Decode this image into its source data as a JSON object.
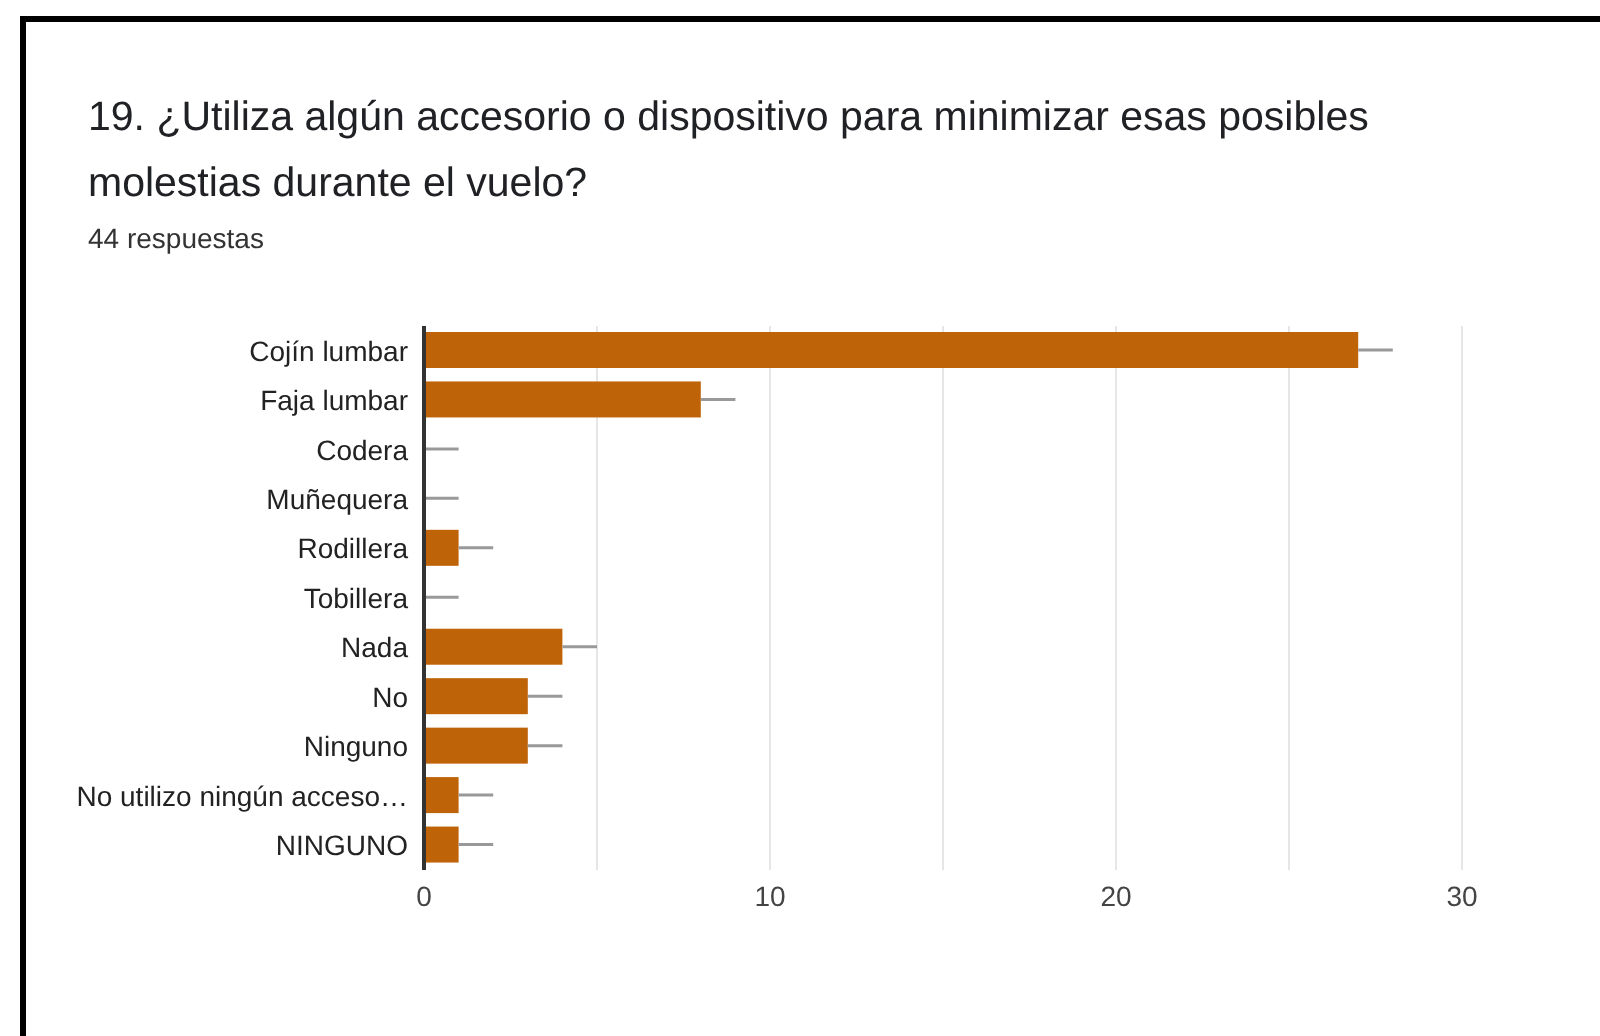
{
  "chart_data": {
    "type": "bar",
    "orientation": "horizontal",
    "title": "19. ¿Utiliza algún accesorio o dispositivo para minimizar esas posibles molestias durante el vuelo?",
    "subtitle": "44 respuestas",
    "categories": [
      "Cojín lumbar",
      "Faja lumbar",
      "Codera",
      "Muñequera",
      "Rodillera",
      "Tobillera",
      "Nada",
      "No",
      "Ninguno",
      "No utilizo ningún acceso…",
      "NINGUNO"
    ],
    "values": [
      27,
      8,
      0,
      0,
      1,
      0,
      4,
      3,
      3,
      1,
      1
    ],
    "errors": [
      [
        27,
        28
      ],
      [
        8,
        9
      ],
      [
        0,
        1
      ],
      [
        0,
        1
      ],
      [
        1,
        2
      ],
      [
        0,
        1
      ],
      [
        4,
        5
      ],
      [
        3,
        4
      ],
      [
        3,
        4
      ],
      [
        1,
        2
      ],
      [
        1,
        2
      ]
    ],
    "color": "#bf6309",
    "xlim": [
      0,
      30
    ],
    "xticks": [
      0,
      {
        "value": 5,
        "label": null
      },
      10,
      {
        "value": 15,
        "label": null
      },
      20,
      {
        "value": 25,
        "label": null
      },
      30
    ],
    "grid": "x",
    "legend": false
  }
}
